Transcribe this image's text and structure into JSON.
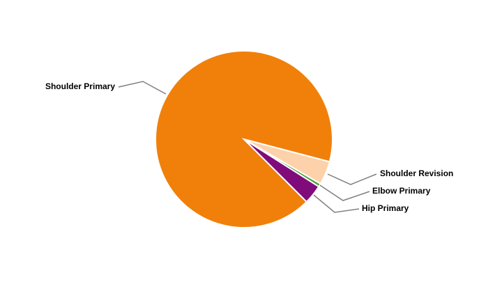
{
  "chart_data": {
    "type": "pie",
    "title": "",
    "unit": "percent (estimated)",
    "slices": [
      {
        "label": "Shoulder Primary",
        "value": 91.6,
        "color": "#F0800A"
      },
      {
        "label": "Shoulder Revision",
        "value": 4.3,
        "color": "#FDD1A9"
      },
      {
        "label": "Elbow Primary",
        "value": 0.6,
        "color": "#4CA03C"
      },
      {
        "label": "Hip Primary",
        "value": 3.5,
        "color": "#800C7C"
      }
    ],
    "legend": "none",
    "data_labels": "outside with connector lines"
  }
}
